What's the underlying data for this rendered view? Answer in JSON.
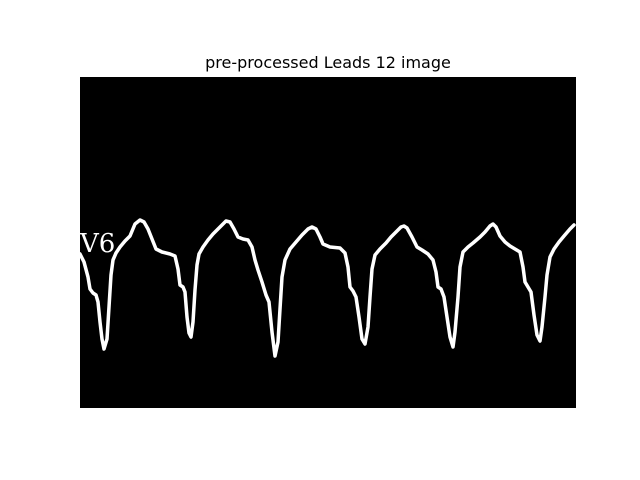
{
  "figure": {
    "title": "pre-processed Leads 12 image",
    "background_color": "#ffffff",
    "panel_color": "#000000",
    "trace_color": "#ffffff"
  },
  "lead": {
    "label": "V6"
  }
}
